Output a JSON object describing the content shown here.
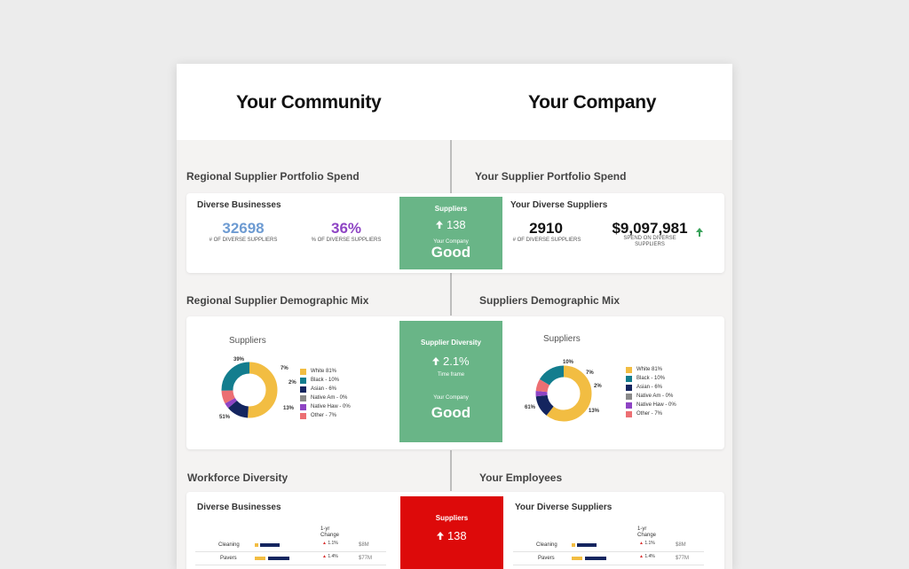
{
  "header": {
    "left_title": "Your Community",
    "right_title": "Your Company"
  },
  "colors": {
    "green_tile": "#69b587",
    "red_tile": "#dd0a0a",
    "blue_num": "#6d9bd2",
    "purple_num": "#8e44c4"
  },
  "spend": {
    "left_section": "Regional Supplier Portfolio Spend",
    "right_section": "Your Supplier Portfolio Spend",
    "left_card": {
      "title": "Diverse Businesses",
      "stat1_value": "32698",
      "stat1_label": "# OF DIVERSE SUPPLIERS",
      "stat2_value": "36%",
      "stat2_label": "% OF DIVERSE SUPPLIERS"
    },
    "tile": {
      "label": "Suppliers",
      "value": "138",
      "sub_label": "Your Company",
      "rating": "Good"
    },
    "right_card": {
      "title": "Your Diverse Suppliers",
      "stat1_value": "2910",
      "stat1_label": "# OF DIVERSE SUPPLIERS",
      "stat2_value": "$9,097,981",
      "stat2_label": "SPEND ON DIVERSE SUPPLIERS"
    }
  },
  "demographic": {
    "left_section": "Regional Supplier Demographic Mix",
    "right_section": "Suppliers Demographic Mix",
    "left_chart": {
      "label": "Suppliers",
      "labels": [
        "39%",
        "7%",
        "2%",
        "13%",
        "51%"
      ],
      "legend": [
        "White 81%",
        "Black - 10%",
        "Asian - 6%",
        "Native Am - 0%",
        "Native Haw - 0%",
        "Other - 7%"
      ]
    },
    "tile": {
      "label": "Supplier Diversity",
      "value": "2.1%",
      "time": "Time frame",
      "sub_label": "Your Company",
      "rating": "Good"
    },
    "right_chart": {
      "label": "Suppliers",
      "labels": [
        "10%",
        "7%",
        "2%",
        "13%",
        "61%"
      ],
      "legend": [
        "White 81%",
        "Black - 10%",
        "Asian - 6%",
        "Native Am - 0%",
        "Native Haw - 0%",
        "Other - 7%"
      ]
    },
    "legend_colors": [
      "#f2bd42",
      "#137d8e",
      "#14255f",
      "#8a8a8a",
      "#8e44c4",
      "#ec6f73"
    ]
  },
  "workforce": {
    "left_section": "Workforce Diversity",
    "right_section": "Your Employees",
    "left_card": {
      "title": "Diverse Businesses",
      "change_header": "1-yr Change",
      "rows": [
        {
          "name": "Cleaning",
          "change": "1.1%",
          "amount": "$8M"
        },
        {
          "name": "Pavers",
          "change": "1.4%",
          "amount": "$77M"
        }
      ]
    },
    "tile": {
      "label": "Suppliers",
      "value": "138"
    },
    "right_card": {
      "title": "Your Diverse Suppliers",
      "change_header": "1-yr Change",
      "rows": [
        {
          "name": "Cleaning",
          "change": "1.1%",
          "amount": "$8M"
        },
        {
          "name": "Pavers",
          "change": "1.4%",
          "amount": "$77M"
        }
      ]
    }
  }
}
